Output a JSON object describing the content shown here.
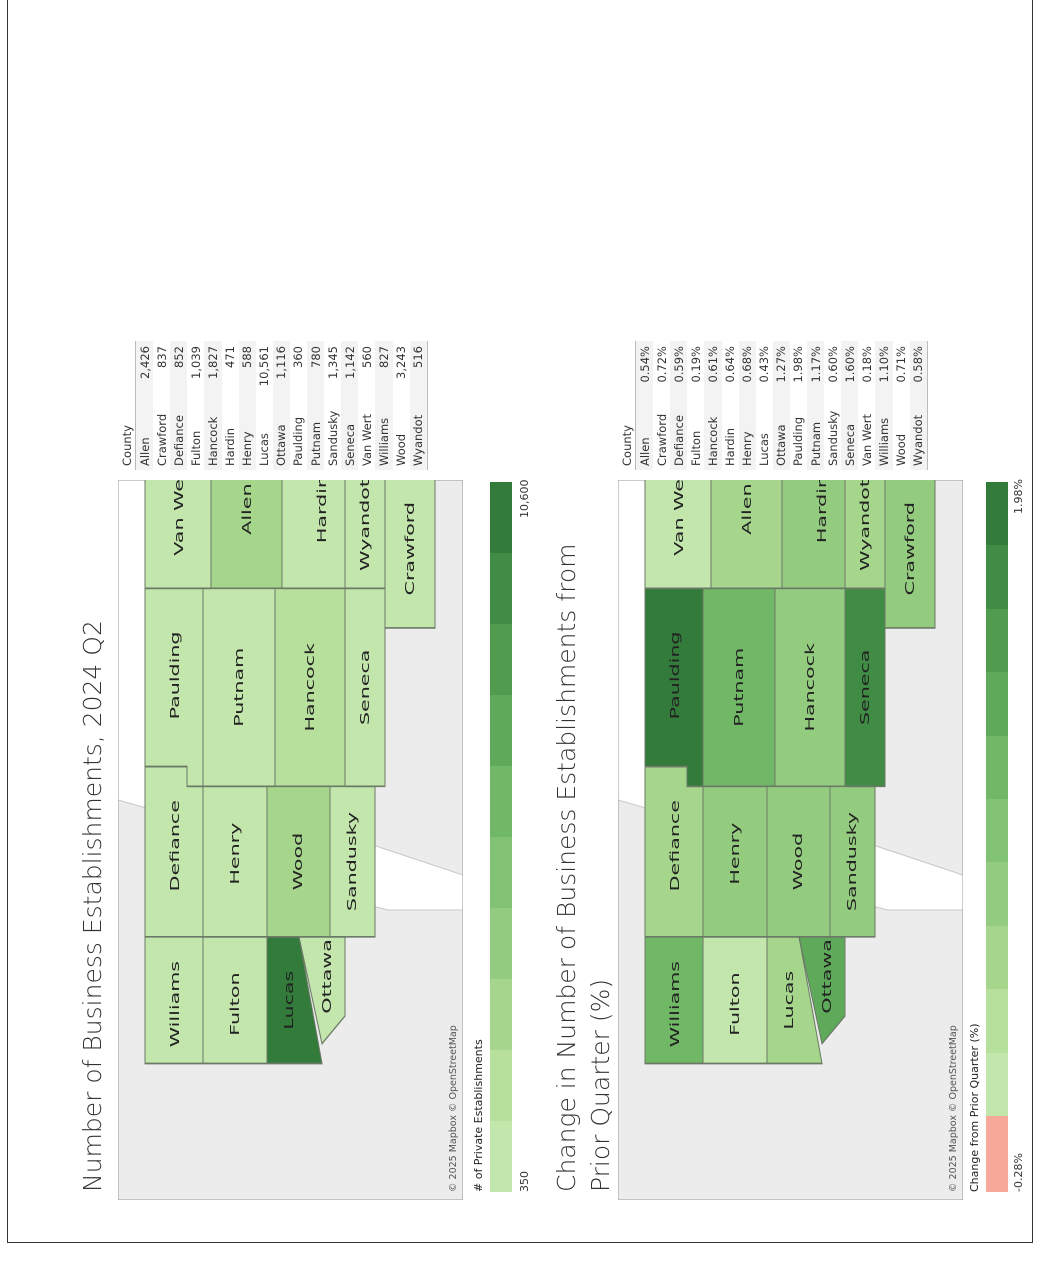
{
  "colors": {
    "scale": [
      "#c3e6ad",
      "#b6e09c",
      "#a5d68c",
      "#93cc7f",
      "#82c273",
      "#70b766",
      "#5fa95a",
      "#509b4e",
      "#418c44",
      "#327b3a"
    ],
    "negative": "#f7a899",
    "land": "#ececec",
    "water": "#ffffff"
  },
  "map1": {
    "title": "Number of Business Establishments, 2024 Q2",
    "credit": "© 2025 Mapbox © OpenStreetMap",
    "legend": {
      "title": "# of Private Establishments",
      "min": "350",
      "max": "10,600"
    },
    "table_header": "County",
    "rows": [
      {
        "county": "Allen",
        "value": "2,426"
      },
      {
        "county": "Crawford",
        "value": "837"
      },
      {
        "county": "Defiance",
        "value": "852"
      },
      {
        "county": "Fulton",
        "value": "1,039"
      },
      {
        "county": "Hancock",
        "value": "1,827"
      },
      {
        "county": "Hardin",
        "value": "471"
      },
      {
        "county": "Henry",
        "value": "588"
      },
      {
        "county": "Lucas",
        "value": "10,561"
      },
      {
        "county": "Ottawa",
        "value": "1,116"
      },
      {
        "county": "Paulding",
        "value": "360"
      },
      {
        "county": "Putnam",
        "value": "780"
      },
      {
        "county": "Sandusky",
        "value": "1,345"
      },
      {
        "county": "Seneca",
        "value": "1,142"
      },
      {
        "county": "Van Wert",
        "value": "560"
      },
      {
        "county": "Williams",
        "value": "827"
      },
      {
        "county": "Wood",
        "value": "3,243"
      },
      {
        "county": "Wyandot",
        "value": "516"
      }
    ]
  },
  "map2": {
    "title": "Change in Number of Business Establishments from Prior Quarter (%)",
    "credit": "© 2025 Mapbox © OpenStreetMap",
    "legend": {
      "title": "Change from Prior Quarter (%)",
      "min": "-0.28%",
      "max": "1.98%"
    },
    "table_header": "County",
    "rows": [
      {
        "county": "Allen",
        "value": "0.54%"
      },
      {
        "county": "Crawford",
        "value": "0.72%"
      },
      {
        "county": "Defiance",
        "value": "0.59%"
      },
      {
        "county": "Fulton",
        "value": "0.19%"
      },
      {
        "county": "Hancock",
        "value": "0.61%"
      },
      {
        "county": "Hardin",
        "value": "0.64%"
      },
      {
        "county": "Henry",
        "value": "0.68%"
      },
      {
        "county": "Lucas",
        "value": "0.43%"
      },
      {
        "county": "Ottawa",
        "value": "1.27%"
      },
      {
        "county": "Paulding",
        "value": "1.98%"
      },
      {
        "county": "Putnam",
        "value": "1.17%"
      },
      {
        "county": "Sandusky",
        "value": "0.60%"
      },
      {
        "county": "Seneca",
        "value": "1.60%"
      },
      {
        "county": "Van Wert",
        "value": "0.18%"
      },
      {
        "county": "Williams",
        "value": "1.10%"
      },
      {
        "county": "Wood",
        "value": "0.71%"
      },
      {
        "county": "Wyandot",
        "value": "0.58%"
      }
    ]
  }
}
